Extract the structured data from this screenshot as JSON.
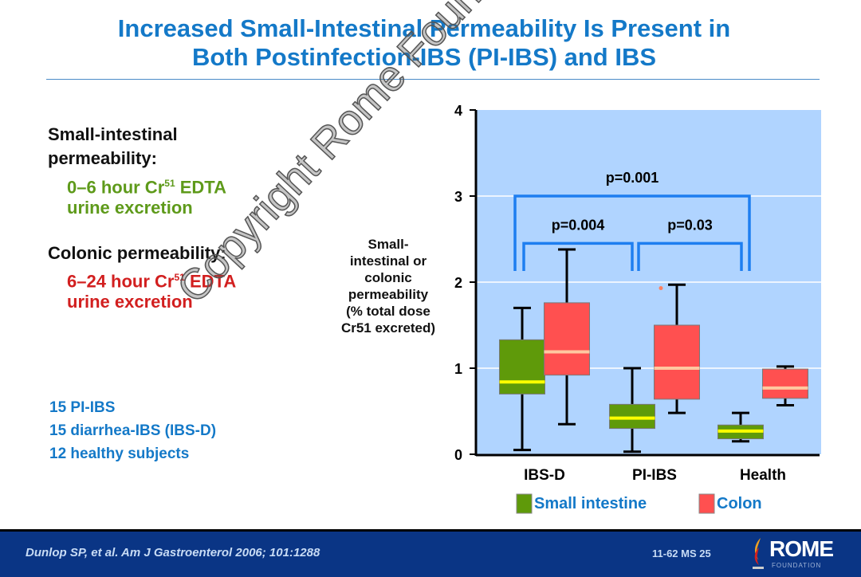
{
  "title": {
    "line1": "Increased Small-Intestinal Permeability Is Present in",
    "line2": "Both Postinfection-IBS (PI-IBS) and IBS"
  },
  "left": {
    "si_heading": "Small-intestinal permeability:",
    "si_line1": "0–6 hour Cr",
    "si_sup": "51",
    "si_line1b": " EDTA",
    "si_line2": "urine excretion",
    "col_heading": "Colonic permeability:",
    "col_line1": "6–24 hour Cr",
    "col_sup": "51",
    "col_line1b": " EDTA",
    "col_line2": "urine excretion",
    "subjects": [
      "15 PI-IBS",
      "15 diarrhea-IBS (IBS-D)",
      "12 healthy subjects"
    ]
  },
  "watermark": "Copyright Rome Foundation",
  "footer": {
    "citation": "Dunlop SP, et al. Am J Gastroenterol 2006; 101:1288",
    "code": "11-62   MS 25",
    "logo_main": "ROME",
    "logo_sub": "FOUNDATION"
  },
  "chart_data": {
    "type": "boxplot",
    "ylabel_lines": [
      "Small-",
      "intestinal or",
      "colonic",
      "permeability",
      "(% total dose",
      "Cr51 excreted)"
    ],
    "ylim": [
      0,
      4
    ],
    "yticks": [
      "0",
      "1",
      "2",
      "3",
      "4"
    ],
    "categories": [
      "IBS-D",
      "PI-IBS",
      "Health"
    ],
    "legend": [
      {
        "name": "Small intestine",
        "color": "#5f9a0a"
      },
      {
        "name": "Colon",
        "color": "#ff5050"
      }
    ],
    "series": [
      {
        "name": "Small intestine",
        "color": "#5f9a0a",
        "median_color": "#ffff00",
        "boxes": [
          {
            "min": 0.05,
            "q1": 0.7,
            "median": 0.84,
            "q3": 1.33,
            "max": 1.7
          },
          {
            "min": 0.03,
            "q1": 0.3,
            "median": 0.42,
            "q3": 0.58,
            "max": 1.0
          },
          {
            "min": 0.15,
            "q1": 0.18,
            "median": 0.27,
            "q3": 0.34,
            "max": 0.48
          }
        ]
      },
      {
        "name": "Colon",
        "color": "#ff5050",
        "median_color": "#ffc8a0",
        "boxes": [
          {
            "min": 0.35,
            "q1": 0.92,
            "median": 1.19,
            "q3": 1.76,
            "max": 2.38
          },
          {
            "min": 0.48,
            "q1": 0.64,
            "median": 1.0,
            "q3": 1.5,
            "max": 1.97,
            "outliers": [
              1.93
            ]
          },
          {
            "min": 0.57,
            "q1": 0.65,
            "median": 0.77,
            "q3": 0.99,
            "max": 1.02
          }
        ]
      }
    ],
    "annotations": [
      {
        "text": "p=0.001",
        "from": "IBS-D",
        "to": "Health",
        "level": 3.0
      },
      {
        "text": "p=0.004",
        "from": "IBS-D",
        "to": "PI-IBS",
        "level": 2.45
      },
      {
        "text": "p=0.03",
        "from": "PI-IBS",
        "to": "Health",
        "level": 2.45
      }
    ],
    "colors": {
      "plot_bg": "#b0d4ff",
      "bracket": "#1e7ef0"
    }
  }
}
